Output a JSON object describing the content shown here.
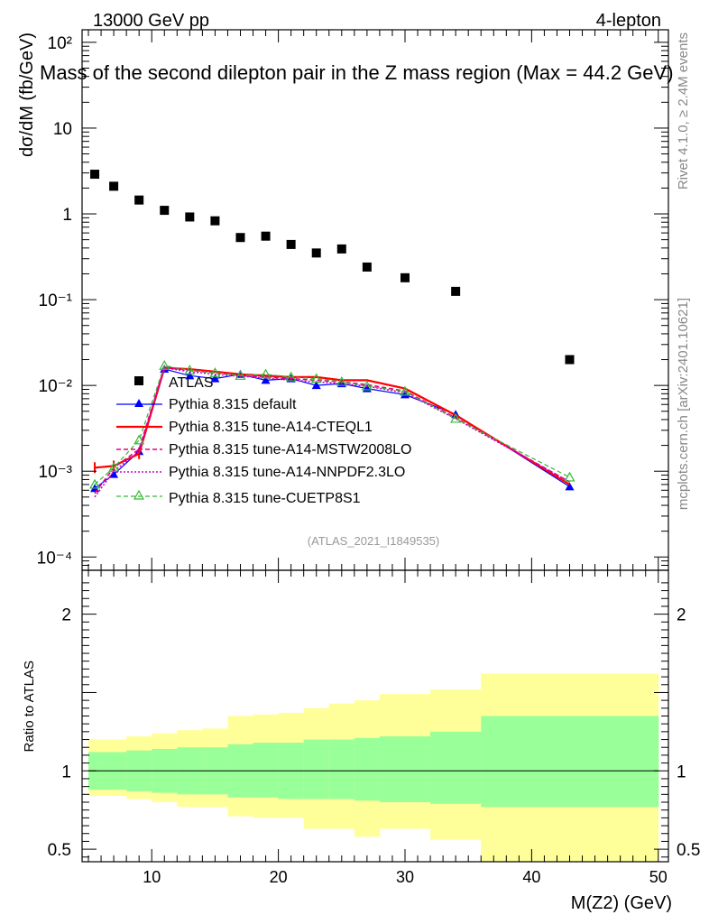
{
  "header": {
    "energy_label": "13000 GeV pp",
    "channel_label": "4-lepton",
    "plot_title": "Mass of the second dilepton pair in the Z mass region (Max = 44.2 GeV)",
    "rivet_label": "Rivet 4.1.0, ≥ 2.4M events",
    "site_label": "mcplots.cern.ch [arXiv:2401.10621]",
    "analysis_label": "(ATLAS_2021_I1849535)"
  },
  "colors": {
    "atlas": "#000000",
    "default": "#0000ff",
    "cteql1": "#ff0000",
    "mstw": "#e6007e",
    "nnpdf": "#cc00cc",
    "cuetp8s1": "#33bb33",
    "band_inner": "#99ff99",
    "band_outer": "#ffff99"
  },
  "chart_data": [
    {
      "type": "scatter",
      "title": "Mass of the second dilepton pair in the Z mass region (Max = 44.2 GeV)",
      "xlabel": "M(Z2) (GeV)",
      "ylabel": "dσ/dM (fb/GeV)",
      "xlim": [
        4.5,
        50.8
      ],
      "ylim": [
        7e-05,
        140
      ],
      "yscale": "log",
      "y_tick_labels": [
        "10⁻⁴",
        "10⁻³",
        "10⁻²",
        "10⁻¹",
        "1",
        "10",
        "10²"
      ],
      "legend": [
        "ATLAS",
        "Pythia 8.315 default",
        "Pythia 8.315 tune-A14-CTEQL1",
        "Pythia 8.315 tune-A14-MSTW2008LO",
        "Pythia 8.315 tune-A14-NNPDF2.3LO",
        "Pythia 8.315 tune-CUETP8S1"
      ],
      "legend_position": "lower-left",
      "data": {
        "name": "ATLAS",
        "x": [
          5.5,
          7,
          9,
          11,
          13,
          15,
          17,
          19,
          21,
          23,
          25,
          27,
          30,
          34,
          43
        ],
        "y": [
          2.9,
          2.1,
          1.45,
          1.1,
          0.92,
          0.83,
          0.53,
          0.55,
          0.44,
          0.35,
          0.39,
          0.24,
          0.18,
          0.125,
          0.02
        ]
      },
      "series": [
        {
          "name": "Pythia 8.315 default",
          "style": "solid",
          "marker": "filled-triangle",
          "x": [
            5.5,
            7,
            9,
            11,
            13,
            15,
            17,
            19,
            21,
            23,
            25,
            27,
            30,
            34,
            43
          ],
          "y": [
            0.00063,
            0.00092,
            0.0017,
            0.0155,
            0.013,
            0.012,
            0.0135,
            0.0115,
            0.012,
            0.01,
            0.0105,
            0.0092,
            0.0078,
            0.0046,
            0.00066
          ]
        },
        {
          "name": "Pythia 8.315 tune-A14-CTEQL1",
          "style": "solid",
          "marker": "none",
          "x": [
            5.5,
            7,
            9,
            11,
            13,
            15,
            17,
            19,
            21,
            23,
            25,
            27,
            30,
            34,
            43
          ],
          "y": [
            0.0011,
            0.00115,
            0.0016,
            0.016,
            0.0155,
            0.0145,
            0.0135,
            0.013,
            0.0125,
            0.0125,
            0.0115,
            0.0115,
            0.0092,
            0.0045,
            0.0007
          ]
        },
        {
          "name": "Pythia 8.315 tune-A14-MSTW2008LO",
          "style": "dashed",
          "marker": "none",
          "x": [
            5.5,
            7,
            9,
            11,
            13,
            15,
            17,
            19,
            21,
            23,
            25,
            27,
            30,
            34,
            43
          ],
          "y": [
            0.00055,
            0.0011,
            0.0018,
            0.0165,
            0.015,
            0.014,
            0.013,
            0.0125,
            0.012,
            0.0115,
            0.011,
            0.0102,
            0.0086,
            0.0042,
            0.00075
          ]
        },
        {
          "name": "Pythia 8.315 tune-A14-NNPDF2.3LO",
          "style": "dotted",
          "marker": "none",
          "x": [
            5.5,
            7,
            9,
            11,
            13,
            15,
            17,
            19,
            21,
            23,
            25,
            27,
            30,
            34,
            43
          ],
          "y": [
            0.0005,
            0.001,
            0.0017,
            0.016,
            0.0145,
            0.0135,
            0.0128,
            0.0122,
            0.0115,
            0.011,
            0.0105,
            0.0098,
            0.0082,
            0.0041,
            0.00075
          ]
        },
        {
          "name": "Pythia 8.315 tune-CUETP8S1",
          "style": "dashed",
          "marker": "open-triangle",
          "x": [
            5.5,
            7,
            9,
            11,
            13,
            15,
            17,
            19,
            21,
            23,
            25,
            27,
            30,
            34,
            43
          ],
          "y": [
            0.0007,
            0.0011,
            0.0023,
            0.017,
            0.015,
            0.014,
            0.013,
            0.0135,
            0.0125,
            0.012,
            0.011,
            0.0098,
            0.0085,
            0.0041,
            0.00085
          ]
        }
      ]
    },
    {
      "type": "area",
      "ylabel": "Ratio to ATLAS",
      "xlabel": "M(Z2) (GeV)",
      "xlim": [
        4.5,
        50.8
      ],
      "ylim": [
        0.42,
        2.28
      ],
      "x_ticks": [
        10,
        20,
        30,
        40,
        50
      ],
      "y_ticks": [
        0.5,
        1,
        2
      ],
      "reference_line": 1,
      "bin_edges": [
        5,
        6,
        8,
        10,
        12,
        14,
        16,
        18,
        20,
        22,
        24,
        26,
        28,
        32,
        36,
        50
      ],
      "inner_band": {
        "low": [
          0.88,
          0.88,
          0.87,
          0.86,
          0.85,
          0.85,
          0.83,
          0.83,
          0.82,
          0.82,
          0.82,
          0.81,
          0.8,
          0.79,
          0.77
        ],
        "high": [
          1.12,
          1.12,
          1.13,
          1.14,
          1.15,
          1.15,
          1.17,
          1.18,
          1.18,
          1.2,
          1.2,
          1.21,
          1.22,
          1.25,
          1.35
        ]
      },
      "outer_band": {
        "low": [
          0.84,
          0.84,
          0.82,
          0.8,
          0.77,
          0.77,
          0.71,
          0.7,
          0.7,
          0.63,
          0.63,
          0.58,
          0.63,
          0.56,
          0.42
        ],
        "high": [
          1.2,
          1.2,
          1.22,
          1.24,
          1.26,
          1.27,
          1.35,
          1.36,
          1.37,
          1.4,
          1.43,
          1.45,
          1.49,
          1.52,
          1.62
        ]
      }
    }
  ]
}
